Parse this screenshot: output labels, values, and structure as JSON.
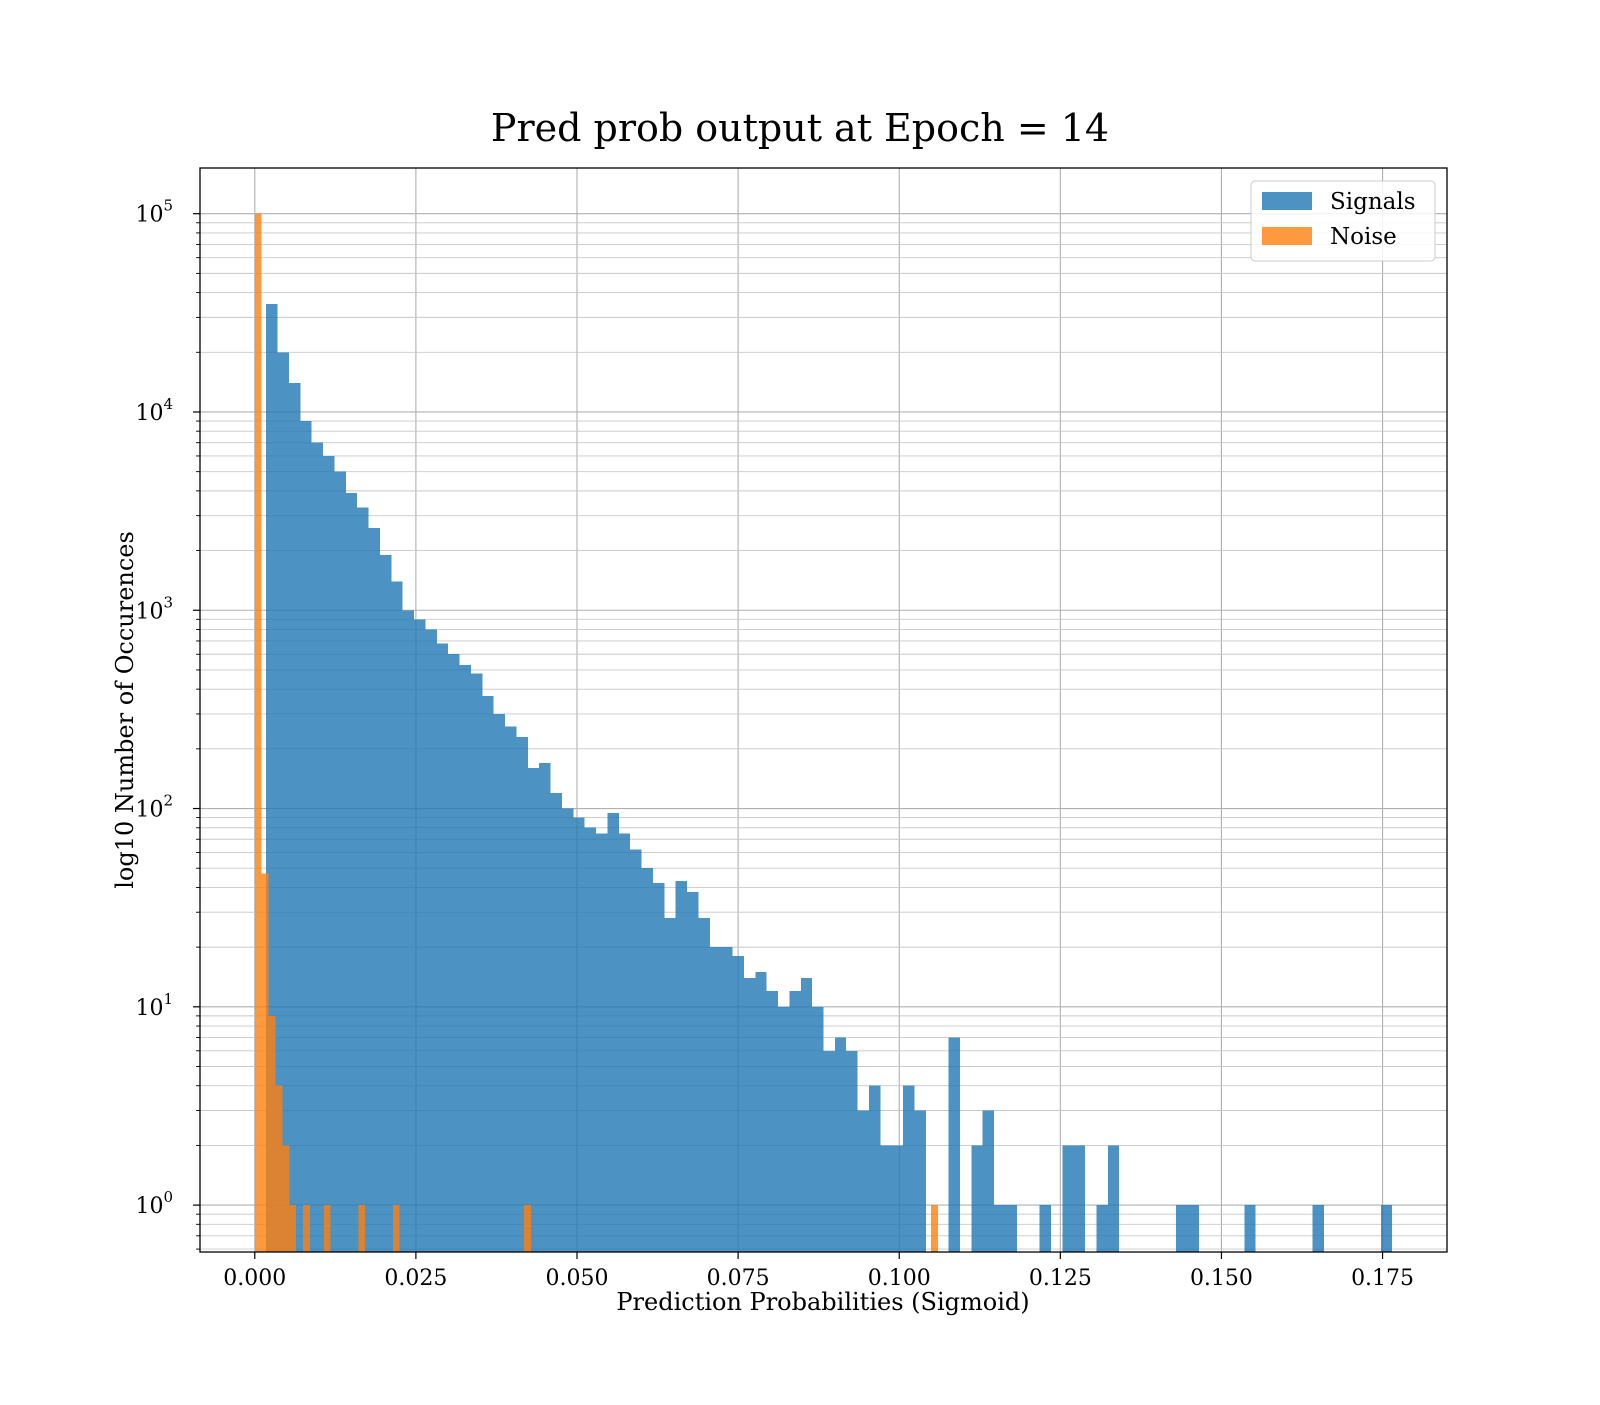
{
  "chart_data": {
    "type": "bar",
    "title": "Pred prob output at Epoch = 14",
    "xlabel": "Prediction Probabilities (Sigmoid)",
    "ylabel": "log10 Number of Occurences",
    "yscale": "log",
    "xlim": [
      -0.0085,
      0.185
    ],
    "ylim": [
      0.58,
      170000
    ],
    "x_ticks": [
      0.0,
      0.025,
      0.05,
      0.075,
      0.1,
      0.125,
      0.15,
      0.175
    ],
    "x_tick_labels": [
      "0.000",
      "0.025",
      "0.050",
      "0.075",
      "0.100",
      "0.125",
      "0.150",
      "0.175"
    ],
    "y_ticks": [
      1,
      10,
      100,
      1000,
      10000,
      100000
    ],
    "y_tick_exponents": [
      "0",
      "1",
      "2",
      "3",
      "4",
      "5"
    ],
    "y_tick_base": "10",
    "grid": "on (major and minor)",
    "legend_position": "upper right",
    "colors": {
      "signals": "#1f77b4",
      "noise": "#ff7f0e"
    },
    "series": [
      {
        "name": "Signals",
        "color": "#1f77b4",
        "opacity": 0.8,
        "bin_width": 0.001765,
        "bin_start": 0.0,
        "counts": [
          0,
          35000,
          20000,
          14000,
          9000,
          7000,
          6000,
          5000,
          3900,
          3300,
          2600,
          1900,
          1400,
          1000,
          900,
          800,
          680,
          600,
          530,
          480,
          370,
          300,
          260,
          230,
          160,
          170,
          120,
          100,
          90,
          80,
          75,
          95,
          75,
          62,
          50,
          42,
          28,
          43,
          38,
          28,
          20,
          20,
          18,
          14,
          15,
          12,
          10,
          12,
          14,
          10,
          6,
          7,
          6,
          3,
          4,
          2,
          2,
          4,
          3,
          0,
          0,
          7,
          0,
          2,
          3,
          1,
          1,
          0,
          0,
          1,
          0,
          2,
          2,
          0,
          1,
          2,
          0,
          0,
          0,
          0,
          0,
          1,
          1,
          0,
          0,
          0,
          0,
          1,
          0,
          0,
          0,
          0,
          0,
          1,
          0,
          0,
          0,
          0,
          0,
          1
        ]
      },
      {
        "name": "Noise",
        "color": "#ff7f0e",
        "opacity": 0.8,
        "bars": [
          {
            "x0": 0.0,
            "x1": 0.00107,
            "count": 100000
          },
          {
            "x0": 0.00107,
            "x1": 0.00214,
            "count": 47
          },
          {
            "x0": 0.00214,
            "x1": 0.00321,
            "count": 9
          },
          {
            "x0": 0.00321,
            "x1": 0.00428,
            "count": 4
          },
          {
            "x0": 0.00428,
            "x1": 0.00535,
            "count": 2
          },
          {
            "x0": 0.00535,
            "x1": 0.00642,
            "count": 1
          },
          {
            "x0": 0.0075,
            "x1": 0.00857,
            "count": 1
          },
          {
            "x0": 0.01071,
            "x1": 0.01178,
            "count": 1
          },
          {
            "x0": 0.01606,
            "x1": 0.01713,
            "count": 1
          },
          {
            "x0": 0.02141,
            "x1": 0.02248,
            "count": 1
          },
          {
            "x0": 0.04176,
            "x1": 0.04283,
            "count": 1
          },
          {
            "x0": 0.10495,
            "x1": 0.10602,
            "count": 1
          }
        ]
      }
    ]
  }
}
